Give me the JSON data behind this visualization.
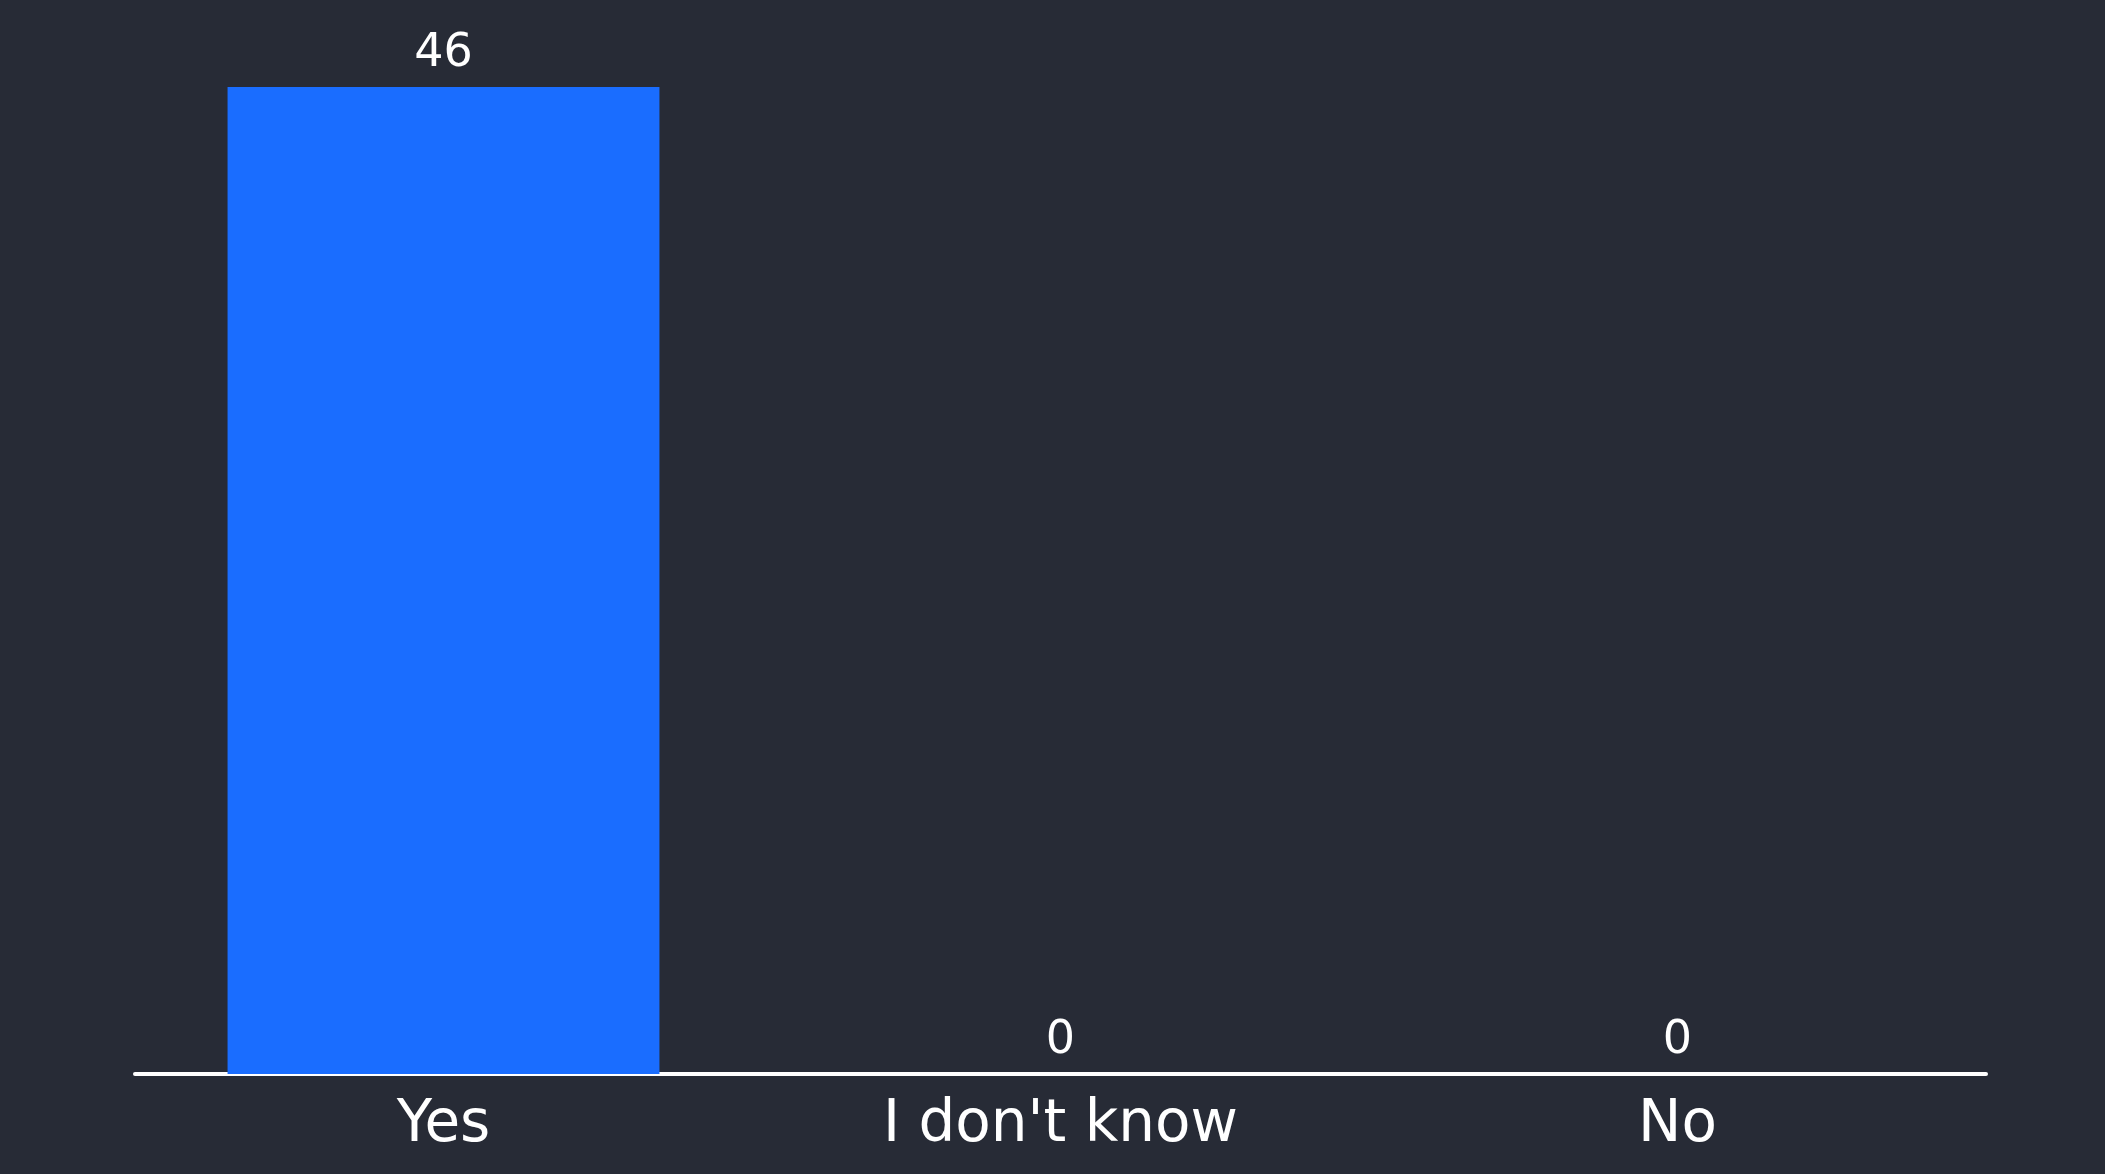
{
  "chart_data": {
    "type": "bar",
    "categories": [
      "Yes",
      "I don't know",
      "No"
    ],
    "values": [
      46,
      0,
      0
    ],
    "color": "#1a6dff",
    "data_labels": true
  }
}
